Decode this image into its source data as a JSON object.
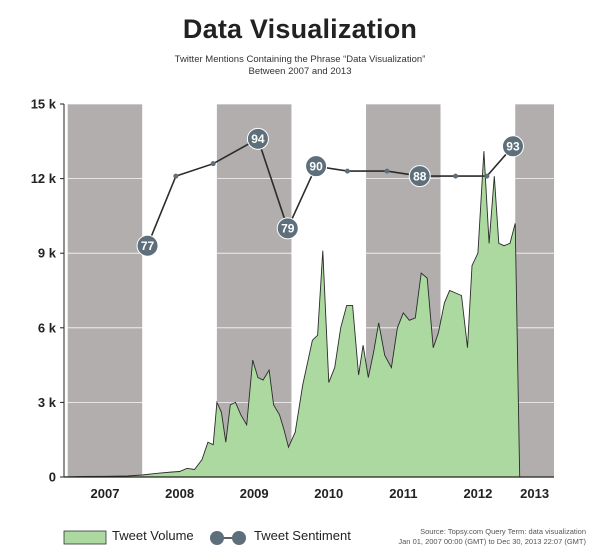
{
  "chart_data": {
    "type": "area",
    "title": "Data Visualization",
    "subtitle_lines": [
      "Twitter Mentions Containing the Phrase “Data Visualization”",
      "Between 2007 and 2013"
    ],
    "ylim": [
      0,
      15000
    ],
    "xlim": [
      2006.95,
      2013.52
    ],
    "y_ticks": [
      {
        "value": 0,
        "label": "0"
      },
      {
        "value": 3000,
        "label": "3 k"
      },
      {
        "value": 6000,
        "label": "6 k"
      },
      {
        "value": 9000,
        "label": "9 k"
      },
      {
        "value": 12000,
        "label": "12 k"
      },
      {
        "value": 15000,
        "label": "15 k"
      }
    ],
    "year_bands": [
      {
        "label": "2007",
        "start": 2007,
        "end": 2008,
        "shaded": true
      },
      {
        "label": "2008",
        "start": 2008,
        "end": 2009,
        "shaded": false
      },
      {
        "label": "2009",
        "start": 2009,
        "end": 2010,
        "shaded": true
      },
      {
        "label": "2010",
        "start": 2010,
        "end": 2011,
        "shaded": false
      },
      {
        "label": "2011",
        "start": 2011,
        "end": 2012,
        "shaded": true
      },
      {
        "label": "2012",
        "start": 2012,
        "end": 2013,
        "shaded": false
      },
      {
        "label": "2013",
        "start": 2013,
        "end": 2013.52,
        "shaded": true
      }
    ],
    "grid": true,
    "series": [
      {
        "name": "Tweet Volume",
        "type": "area",
        "color": "#acd9a0",
        "line_color": "#2b2b2b",
        "points": [
          [
            2006.95,
            0
          ],
          [
            2007.2,
            20
          ],
          [
            2007.5,
            30
          ],
          [
            2007.8,
            40
          ],
          [
            2008.0,
            80
          ],
          [
            2008.2,
            150
          ],
          [
            2008.4,
            200
          ],
          [
            2008.5,
            220
          ],
          [
            2008.6,
            350
          ],
          [
            2008.7,
            300
          ],
          [
            2008.8,
            700
          ],
          [
            2008.88,
            1400
          ],
          [
            2008.95,
            1300
          ],
          [
            2009.0,
            3000
          ],
          [
            2009.06,
            2600
          ],
          [
            2009.12,
            1400
          ],
          [
            2009.18,
            2900
          ],
          [
            2009.25,
            3000
          ],
          [
            2009.32,
            2500
          ],
          [
            2009.4,
            2100
          ],
          [
            2009.48,
            4700
          ],
          [
            2009.55,
            4000
          ],
          [
            2009.62,
            3900
          ],
          [
            2009.7,
            4300
          ],
          [
            2009.76,
            2900
          ],
          [
            2009.84,
            2500
          ],
          [
            2009.9,
            1900
          ],
          [
            2009.96,
            1200
          ],
          [
            2010.05,
            1800
          ],
          [
            2010.15,
            3700
          ],
          [
            2010.28,
            5500
          ],
          [
            2010.35,
            5700
          ],
          [
            2010.42,
            9100
          ],
          [
            2010.5,
            3800
          ],
          [
            2010.58,
            4400
          ],
          [
            2010.66,
            6000
          ],
          [
            2010.74,
            6900
          ],
          [
            2010.82,
            6900
          ],
          [
            2010.9,
            4100
          ],
          [
            2010.96,
            5300
          ],
          [
            2011.03,
            4000
          ],
          [
            2011.1,
            5000
          ],
          [
            2011.17,
            6200
          ],
          [
            2011.25,
            4900
          ],
          [
            2011.34,
            4400
          ],
          [
            2011.42,
            6000
          ],
          [
            2011.5,
            6600
          ],
          [
            2011.58,
            6300
          ],
          [
            2011.66,
            6400
          ],
          [
            2011.74,
            8200
          ],
          [
            2011.82,
            8000
          ],
          [
            2011.9,
            5200
          ],
          [
            2011.97,
            5800
          ],
          [
            2012.05,
            7000
          ],
          [
            2012.12,
            7500
          ],
          [
            2012.2,
            7400
          ],
          [
            2012.28,
            7300
          ],
          [
            2012.36,
            5200
          ],
          [
            2012.42,
            8500
          ],
          [
            2012.5,
            9000
          ],
          [
            2012.58,
            13100
          ],
          [
            2012.65,
            9400
          ],
          [
            2012.72,
            12100
          ],
          [
            2012.78,
            9400
          ],
          [
            2012.85,
            9300
          ],
          [
            2012.93,
            9400
          ],
          [
            2013.0,
            10200
          ],
          [
            2013.06,
            0
          ]
        ]
      },
      {
        "name": "Tweet Sentiment",
        "type": "line",
        "color": "#2b2b2b",
        "marker_color": "#5d6f7a",
        "points": [
          {
            "x": 2008.07,
            "y": 9300,
            "label": "77"
          },
          {
            "x": 2008.45,
            "y": 12100,
            "label": ""
          },
          {
            "x": 2008.95,
            "y": 12600,
            "label": ""
          },
          {
            "x": 2009.55,
            "y": 13600,
            "label": "94"
          },
          {
            "x": 2009.95,
            "y": 10000,
            "label": "79"
          },
          {
            "x": 2010.33,
            "y": 12500,
            "label": "90"
          },
          {
            "x": 2010.75,
            "y": 12300,
            "label": ""
          },
          {
            "x": 2011.28,
            "y": 12300,
            "label": ""
          },
          {
            "x": 2011.72,
            "y": 12100,
            "label": "88"
          },
          {
            "x": 2012.2,
            "y": 12100,
            "label": ""
          },
          {
            "x": 2012.62,
            "y": 12100,
            "label": ""
          },
          {
            "x": 2012.97,
            "y": 13300,
            "label": "93"
          }
        ]
      }
    ]
  },
  "legend": {
    "volume_label": "Tweet Volume",
    "sentiment_label": "Tweet Sentiment"
  },
  "source": {
    "line1": "Source: Topsy.com  Query Term: data visualization",
    "line2": "Jan 01, 2007 00:00 (GMT) to Dec 30, 2013 22:07 (GMT)"
  },
  "colors": {
    "band_shade": "#b3aeae",
    "band_clear": "#ffffff",
    "grid": "#ffffff",
    "axis": "#222222"
  }
}
